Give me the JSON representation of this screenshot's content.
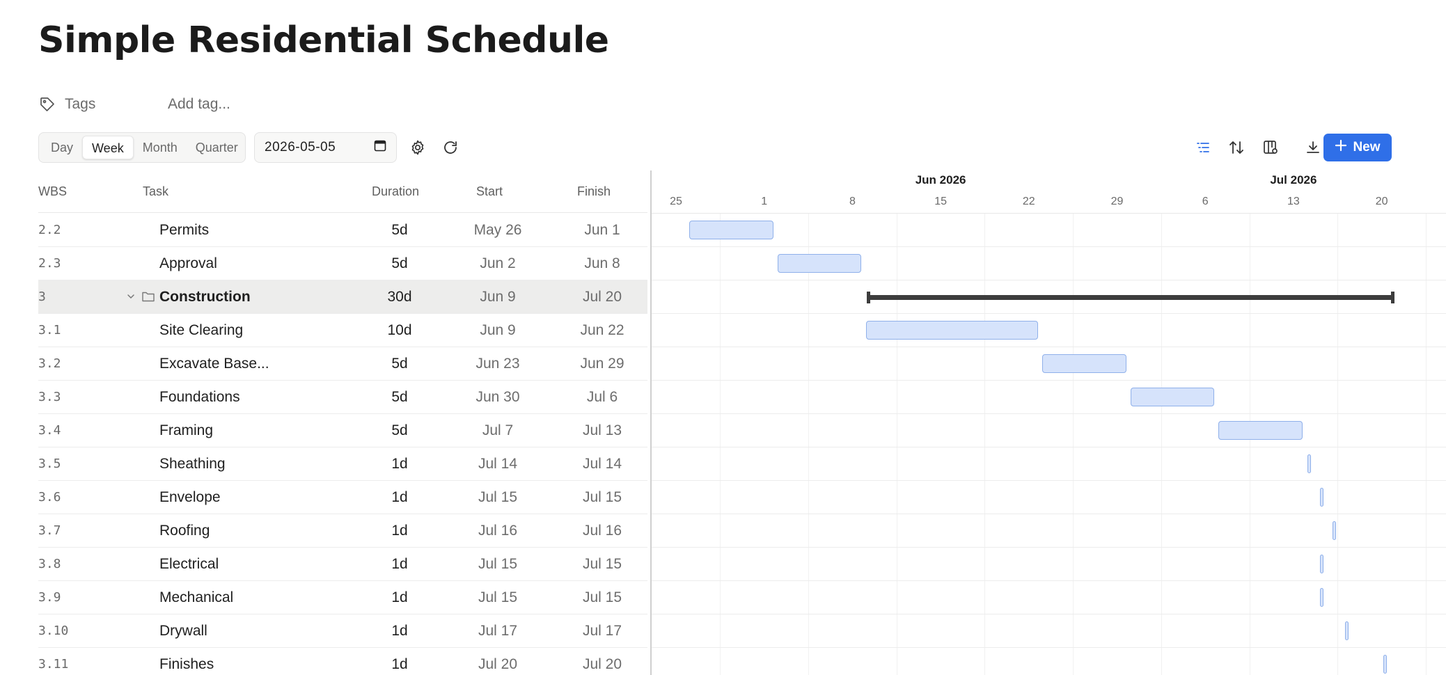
{
  "page": {
    "title": "Simple Residential Schedule"
  },
  "tags": {
    "label": "Tags",
    "add_placeholder": "Add tag..."
  },
  "toolbar": {
    "views": [
      {
        "label": "Day",
        "active": false
      },
      {
        "label": "Week",
        "active": true
      },
      {
        "label": "Month",
        "active": false
      },
      {
        "label": "Quarter",
        "active": false
      }
    ],
    "date_value": "2026-05-05",
    "icons": [
      "settings-gear-icon",
      "refresh-icon",
      "list-view-icon",
      "sort-icon",
      "columns-settings-icon",
      "download-icon"
    ],
    "new_label": "New",
    "accent": "#2f6fe8"
  },
  "grid": {
    "columns": {
      "wbs": "WBS",
      "task": "Task",
      "duration": "Duration",
      "start": "Start",
      "finish": "Finish"
    },
    "rows": [
      {
        "wbs": "2.2",
        "task": "Permits",
        "duration": "5d",
        "start": "May 26",
        "finish": "Jun 1",
        "summary": false
      },
      {
        "wbs": "2.3",
        "task": "Approval",
        "duration": "5d",
        "start": "Jun 2",
        "finish": "Jun 8",
        "summary": false
      },
      {
        "wbs": "3",
        "task": "Construction",
        "duration": "30d",
        "start": "Jun 9",
        "finish": "Jul 20",
        "summary": true
      },
      {
        "wbs": "3.1",
        "task": "Site Clearing",
        "duration": "10d",
        "start": "Jun 9",
        "finish": "Jun 22",
        "summary": false
      },
      {
        "wbs": "3.2",
        "task": "Excavate Base...",
        "duration": "5d",
        "start": "Jun 23",
        "finish": "Jun 29",
        "summary": false
      },
      {
        "wbs": "3.3",
        "task": "Foundations",
        "duration": "5d",
        "start": "Jun 30",
        "finish": "Jul 6",
        "summary": false
      },
      {
        "wbs": "3.4",
        "task": "Framing",
        "duration": "5d",
        "start": "Jul 7",
        "finish": "Jul 13",
        "summary": false
      },
      {
        "wbs": "3.5",
        "task": "Sheathing",
        "duration": "1d",
        "start": "Jul 14",
        "finish": "Jul 14",
        "summary": false
      },
      {
        "wbs": "3.6",
        "task": "Envelope",
        "duration": "1d",
        "start": "Jul 15",
        "finish": "Jul 15",
        "summary": false
      },
      {
        "wbs": "3.7",
        "task": "Roofing",
        "duration": "1d",
        "start": "Jul 16",
        "finish": "Jul 16",
        "summary": false
      },
      {
        "wbs": "3.8",
        "task": "Electrical",
        "duration": "1d",
        "start": "Jul 15",
        "finish": "Jul 15",
        "summary": false
      },
      {
        "wbs": "3.9",
        "task": "Mechanical",
        "duration": "1d",
        "start": "Jul 15",
        "finish": "Jul 15",
        "summary": false
      },
      {
        "wbs": "3.10",
        "task": "Drywall",
        "duration": "1d",
        "start": "Jul 17",
        "finish": "Jul 17",
        "summary": false
      },
      {
        "wbs": "3.11",
        "task": "Finishes",
        "duration": "1d",
        "start": "Jul 20",
        "finish": "Jul 20",
        "summary": false
      }
    ]
  },
  "gantt": {
    "months": [
      {
        "label": "Jun 2026",
        "date": "2026-06-15"
      },
      {
        "label": "Jul 2026",
        "date": "2026-07-13"
      }
    ],
    "week_ticks": [
      {
        "label": "25",
        "date": "2026-05-25"
      },
      {
        "label": "1",
        "date": "2026-06-01"
      },
      {
        "label": "8",
        "date": "2026-06-08"
      },
      {
        "label": "15",
        "date": "2026-06-15"
      },
      {
        "label": "22",
        "date": "2026-06-22"
      },
      {
        "label": "29",
        "date": "2026-06-29"
      },
      {
        "label": "6",
        "date": "2026-07-06"
      },
      {
        "label": "13",
        "date": "2026-07-13"
      },
      {
        "label": "20",
        "date": "2026-07-20"
      }
    ],
    "tasks": [
      {
        "start": "2026-05-26",
        "finish": "2026-06-01",
        "type": "task"
      },
      {
        "start": "2026-06-02",
        "finish": "2026-06-08",
        "type": "task"
      },
      {
        "start": "2026-06-09",
        "finish": "2026-07-20",
        "type": "summary"
      },
      {
        "start": "2026-06-09",
        "finish": "2026-06-22",
        "type": "task"
      },
      {
        "start": "2026-06-23",
        "finish": "2026-06-29",
        "type": "task"
      },
      {
        "start": "2026-06-30",
        "finish": "2026-07-06",
        "type": "task"
      },
      {
        "start": "2026-07-07",
        "finish": "2026-07-13",
        "type": "task"
      },
      {
        "start": "2026-07-14",
        "finish": "2026-07-14",
        "type": "task"
      },
      {
        "start": "2026-07-15",
        "finish": "2026-07-15",
        "type": "task"
      },
      {
        "start": "2026-07-16",
        "finish": "2026-07-16",
        "type": "task"
      },
      {
        "start": "2026-07-15",
        "finish": "2026-07-15",
        "type": "task"
      },
      {
        "start": "2026-07-15",
        "finish": "2026-07-15",
        "type": "task"
      },
      {
        "start": "2026-07-17",
        "finish": "2026-07-17",
        "type": "task"
      },
      {
        "start": "2026-07-20",
        "finish": "2026-07-20",
        "type": "task"
      }
    ],
    "bar_color": "#d6e3fb",
    "bar_border": "#8fb0ea",
    "summary_color": "#3d3d3d"
  }
}
